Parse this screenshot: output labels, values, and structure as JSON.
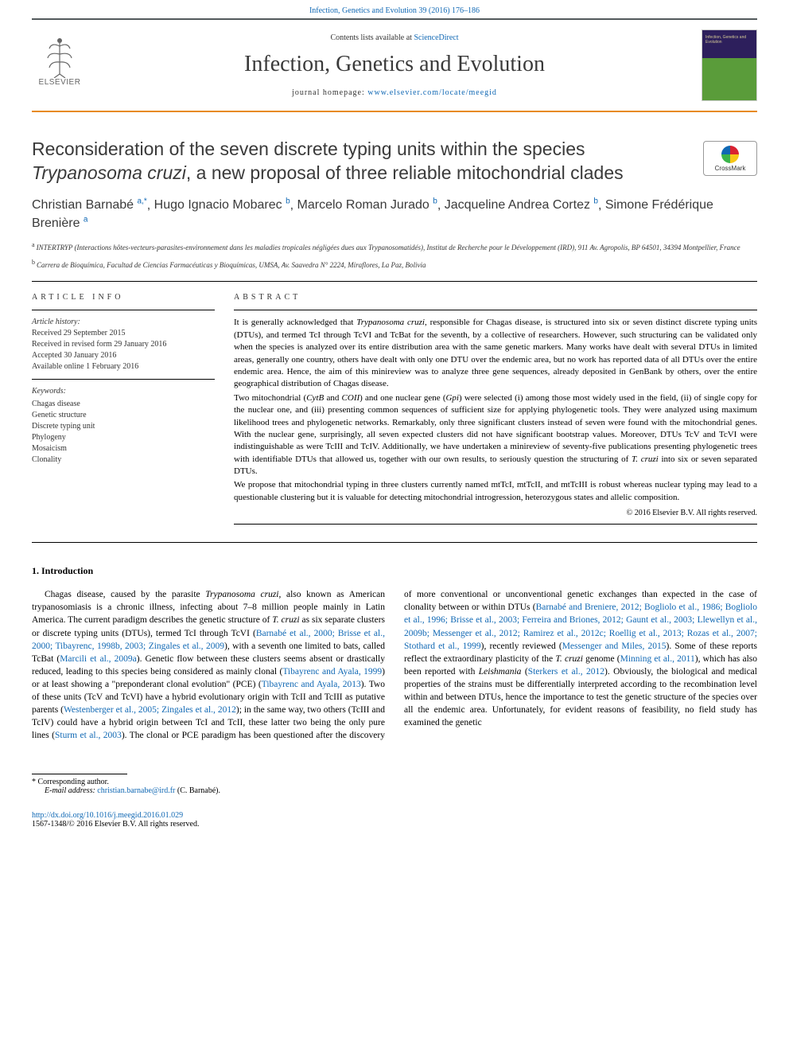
{
  "top_link": {
    "citation": "Infection, Genetics and Evolution 39 (2016) 176–186",
    "url_text": "Infection, Genetics and Evolution 39 (2016) 176–186"
  },
  "header": {
    "publisher_name": "ELSEVIER",
    "contents_text": "Contents lists available at ",
    "contents_link": "ScienceDirect",
    "journal_name": "Infection, Genetics and Evolution",
    "homepage_text": "journal homepage: ",
    "homepage_link": "www.elsevier.com/locate/meegid",
    "cover_title": "Infection, Genetics and Evolution"
  },
  "crossmark": {
    "label": "CrossMark"
  },
  "article": {
    "title_prefix": "Reconsideration of the seven discrete typing units within the species ",
    "title_italic": "Trypanosoma cruzi",
    "title_suffix": ", a new proposal of three reliable mitochondrial clades",
    "authors_html": "Christian Barnabé <sup>a,*</sup>, Hugo Ignacio Mobarec <sup>b</sup>, Marcelo Roman Jurado <sup>b</sup>, Jacqueline Andrea Cortez <sup>b</sup>, Simone Frédérique Brenière <sup>a</sup>",
    "authors": [
      {
        "name": "Christian Barnabé",
        "sup": "a,*"
      },
      {
        "name": "Hugo Ignacio Mobarec",
        "sup": "b"
      },
      {
        "name": "Marcelo Roman Jurado",
        "sup": "b"
      },
      {
        "name": "Jacqueline Andrea Cortez",
        "sup": "b"
      },
      {
        "name": "Simone Frédérique Brenière",
        "sup": "a"
      }
    ],
    "affiliations": [
      {
        "sup": "a",
        "text": "INTERTRYP (Interactions hôtes-vecteurs-parasites-environnement dans les maladies tropicales négligées dues aux Trypanosomatidés), Institut de Recherche pour le Développement (IRD), 911 Av. Agropolis, BP 64501, 34394 Montpellier, France"
      },
      {
        "sup": "b",
        "text": "Carrera de Bioquímica, Facultad de Ciencias Farmacéuticas y Bioquímicas, UMSA, Av. Saavedra N° 2224, Miraflores, La Paz, Bolivia"
      }
    ]
  },
  "article_info": {
    "heading": "ARTICLE INFO",
    "history_label": "Article history:",
    "history": [
      "Received 29 September 2015",
      "Received in revised form 29 January 2016",
      "Accepted 30 January 2016",
      "Available online 1 February 2016"
    ],
    "keywords_label": "Keywords:",
    "keywords": [
      "Chagas disease",
      "Genetic structure",
      "Discrete typing unit",
      "Phylogeny",
      "Mosaicism",
      "Clonality"
    ]
  },
  "abstract": {
    "heading": "ABSTRACT",
    "paragraphs": [
      "It is generally acknowledged that Trypanosoma cruzi, responsible for Chagas disease, is structured into six or seven distinct discrete typing units (DTUs), and termed TcI through TcVI and TcBat for the seventh, by a collective of researchers. However, such structuring can be validated only when the species is analyzed over its entire distribution area with the same genetic markers. Many works have dealt with several DTUs in limited areas, generally one country, others have dealt with only one DTU over the endemic area, but no work has reported data of all DTUs over the entire endemic area. Hence, the aim of this minireview was to analyze three gene sequences, already deposited in GenBank by others, over the entire geographical distribution of Chagas disease.",
      "Two mitochondrial (CytB and COII) and one nuclear gene (Gpi) were selected (i) among those most widely used in the field, (ii) of single copy for the nuclear one, and (iii) presenting common sequences of sufficient size for applying phylogenetic tools. They were analyzed using maximum likelihood trees and phylogenetic networks. Remarkably, only three significant clusters instead of seven were found with the mitochondrial genes. With the nuclear gene, surprisingly, all seven expected clusters did not have significant bootstrap values. Moreover, DTUs TcV and TcVI were indistinguishable as were TcIII and TcIV. Additionally, we have undertaken a minireview of seventy-five publications presenting phylogenetic trees with identifiable DTUs that allowed us, together with our own results, to seriously question the structuring of T. cruzi into six or seven separated DTUs.",
      "We propose that mitochondrial typing in three clusters currently named mtTcI, mtTcII, and mtTcIII is robust whereas nuclear typing may lead to a questionable clustering but it is valuable for detecting mitochondrial introgression, heterozygous states and allelic composition."
    ],
    "copyright": "© 2016 Elsevier B.V. All rights reserved."
  },
  "body": {
    "section_heading": "1. Introduction",
    "text_parts": [
      {
        "t": "text",
        "v": "Chagas disease, caused by the parasite "
      },
      {
        "t": "italic",
        "v": "Trypanosoma cruzi"
      },
      {
        "t": "text",
        "v": ", also known as American trypanosomiasis is a chronic illness, infecting about 7–8 million people mainly in Latin America. The current paradigm describes the genetic structure of "
      },
      {
        "t": "italic",
        "v": "T. cruzi"
      },
      {
        "t": "text",
        "v": " as six separate clusters or discrete typing units (DTUs), termed TcI through TcVI ("
      },
      {
        "t": "link",
        "v": "Barnabé et al., 2000; Brisse et al., 2000; Tibayrenc, 1998b, 2003; Zingales et al., 2009"
      },
      {
        "t": "text",
        "v": "), with a seventh one limited to bats, called TcBat ("
      },
      {
        "t": "link",
        "v": "Marcili et al., 2009a"
      },
      {
        "t": "text",
        "v": "). Genetic flow between these clusters seems absent or drastically reduced, leading to this species being considered as mainly clonal ("
      },
      {
        "t": "link",
        "v": "Tibayrenc and Ayala, 1999"
      },
      {
        "t": "text",
        "v": ") or at least showing a \"preponderant clonal evolution\" (PCE) ("
      },
      {
        "t": "link",
        "v": "Tibayrenc and Ayala, 2013"
      },
      {
        "t": "text",
        "v": "). Two of these units (TcV and TcVI) have a hybrid evolutionary origin with TcII and TcIII as putative parents ("
      },
      {
        "t": "link",
        "v": "Westenberger et al., 2005; Zingales et al., 2012"
      },
      {
        "t": "text",
        "v": "); in the same way, two others (TcIII and TcIV) could have a hybrid origin between TcI and TcII, these latter two being the only pure lines ("
      },
      {
        "t": "link",
        "v": "Sturm et al., 2003"
      },
      {
        "t": "text",
        "v": "). The clonal or PCE paradigm has been questioned after the discovery of more conventional or unconventional genetic exchanges than expected in the case of clonality between or within DTUs ("
      },
      {
        "t": "link",
        "v": "Barnabé and Breniere, 2012; Bogliolo et al., 1986; Bogliolo et al., 1996; Brisse et al., 2003; Ferreira and Briones, 2012; Gaunt et al., 2003; Llewellyn et al., 2009b; Messenger et al., 2012; Ramirez et al., 2012c; Roellig et al., 2013; Rozas et al., 2007; Stothard et al., 1999"
      },
      {
        "t": "text",
        "v": "), recently reviewed ("
      },
      {
        "t": "link",
        "v": "Messenger and Miles, 2015"
      },
      {
        "t": "text",
        "v": "). Some of these reports reflect the extraordinary plasticity of the "
      },
      {
        "t": "italic",
        "v": "T. cruzi"
      },
      {
        "t": "text",
        "v": " genome ("
      },
      {
        "t": "link",
        "v": "Minning et al., 2011"
      },
      {
        "t": "text",
        "v": "), which has also been reported with "
      },
      {
        "t": "italic",
        "v": "Leishmania"
      },
      {
        "t": "text",
        "v": " ("
      },
      {
        "t": "link",
        "v": "Sterkers et al., 2012"
      },
      {
        "t": "text",
        "v": "). Obviously, the biological and medical properties of the strains must be differentially interpreted according to the recombination level within and between DTUs, hence the importance to test the genetic structure of the species over all the endemic area. Unfortunately, for evident reasons of feasibility, no field study has examined the genetic"
      }
    ]
  },
  "footer": {
    "corr_label": "* Corresponding author.",
    "email_label": "E-mail address: ",
    "email": "christian.barnabe@ird.fr",
    "email_name": " (C. Barnabé).",
    "doi": "http://dx.doi.org/10.1016/j.meegid.2016.01.029",
    "issn_copyright": "1567-1348/© 2016 Elsevier B.V. All rights reserved."
  },
  "colors": {
    "link": "#1068b4",
    "orange_rule": "#e78a1e",
    "gray_rule": "#535a5c",
    "text": "#000000",
    "heading": "#3a3a3a"
  },
  "typography": {
    "journal_name_size": 28,
    "article_title_size": 23,
    "authors_size": 16,
    "body_size": 11.5,
    "abstract_size": 11,
    "small_size": 10
  }
}
